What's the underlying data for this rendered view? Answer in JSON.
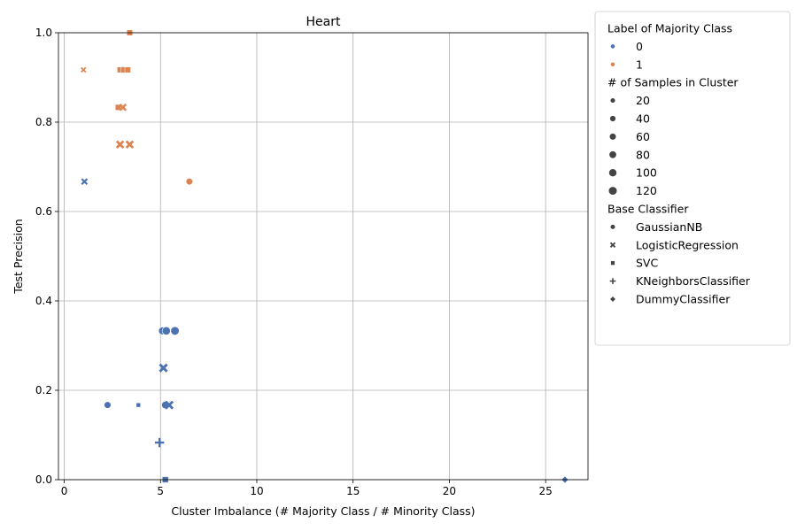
{
  "chart_data": {
    "type": "scatter",
    "title": "Heart",
    "xlabel": "Cluster Imbalance (# Majority Class / # Minority Class)",
    "ylabel": "Test Precision",
    "xlim": [
      -0.3,
      27.2
    ],
    "ylim": [
      0,
      1.0
    ],
    "xticks": [
      0,
      5,
      10,
      15,
      20,
      25
    ],
    "xtick_labels": [
      "0",
      "5",
      "10",
      "15",
      "20",
      "25"
    ],
    "yticks": [
      0,
      0.2,
      0.4,
      0.6,
      0.8,
      1.0
    ],
    "ytick_labels": [
      "0.0",
      "0.2",
      "0.4",
      "0.6",
      "0.8",
      "1.0"
    ],
    "grid": true,
    "legend_position": "outside-right",
    "colors": {
      "0": "#4c72b0",
      "1": "#dd8452",
      "legend_gray": "#444444"
    },
    "legend": {
      "hue_title": "Label of Majority Class",
      "hue_items": [
        {
          "label": "0",
          "key": "0"
        },
        {
          "label": "1",
          "key": "1"
        }
      ],
      "size_title": "# of Samples in Cluster",
      "size_items": [
        {
          "label": "20",
          "size": 20
        },
        {
          "label": "40",
          "size": 40
        },
        {
          "label": "60",
          "size": 60
        },
        {
          "label": "80",
          "size": 80
        },
        {
          "label": "100",
          "size": 100
        },
        {
          "label": "120",
          "size": 120
        }
      ],
      "style_title": "Base Classifier",
      "style_items": [
        {
          "label": "GaussianNB",
          "marker": "circle"
        },
        {
          "label": "LogisticRegression",
          "marker": "x"
        },
        {
          "label": "SVC",
          "marker": "square"
        },
        {
          "label": "KNeighborsClassifier",
          "marker": "plus"
        },
        {
          "label": "DummyClassifier",
          "marker": "diamond"
        }
      ]
    },
    "points": [
      {
        "x": 3.4,
        "y": 1.0,
        "label": "1",
        "marker": "square",
        "samples": 60
      },
      {
        "x": 1.0,
        "y": 0.917,
        "label": "1",
        "marker": "x",
        "samples": 20
      },
      {
        "x": 2.9,
        "y": 0.917,
        "label": "1",
        "marker": "square",
        "samples": 60
      },
      {
        "x": 3.1,
        "y": 0.917,
        "label": "1",
        "marker": "square",
        "samples": 70
      },
      {
        "x": 3.3,
        "y": 0.917,
        "label": "1",
        "marker": "square",
        "samples": 60
      },
      {
        "x": 2.8,
        "y": 0.833,
        "label": "1",
        "marker": "square",
        "samples": 60
      },
      {
        "x": 3.05,
        "y": 0.833,
        "label": "1",
        "marker": "x",
        "samples": 60
      },
      {
        "x": 2.9,
        "y": 0.75,
        "label": "1",
        "marker": "x",
        "samples": 80
      },
      {
        "x": 3.4,
        "y": 0.75,
        "label": "1",
        "marker": "x",
        "samples": 80
      },
      {
        "x": 6.5,
        "y": 0.667,
        "label": "1",
        "marker": "circle",
        "samples": 60
      },
      {
        "x": 1.05,
        "y": 0.667,
        "label": "0",
        "marker": "x",
        "samples": 40
      },
      {
        "x": 5.1,
        "y": 0.333,
        "label": "0",
        "marker": "circle",
        "samples": 90
      },
      {
        "x": 5.3,
        "y": 0.333,
        "label": "0",
        "marker": "circle",
        "samples": 110
      },
      {
        "x": 5.75,
        "y": 0.333,
        "label": "0",
        "marker": "circle",
        "samples": 120
      },
      {
        "x": 5.15,
        "y": 0.25,
        "label": "0",
        "marker": "x",
        "samples": 100
      },
      {
        "x": 2.25,
        "y": 0.167,
        "label": "0",
        "marker": "circle",
        "samples": 60
      },
      {
        "x": 3.85,
        "y": 0.167,
        "label": "0",
        "marker": "square",
        "samples": 20
      },
      {
        "x": 5.25,
        "y": 0.167,
        "label": "0",
        "marker": "circle",
        "samples": 80
      },
      {
        "x": 5.45,
        "y": 0.167,
        "label": "0",
        "marker": "x",
        "samples": 100
      },
      {
        "x": 4.95,
        "y": 0.083,
        "label": "0",
        "marker": "plus",
        "samples": 90
      },
      {
        "x": 5.25,
        "y": 0.0,
        "label": "0",
        "marker": "square",
        "samples": 70
      },
      {
        "x": 26.0,
        "y": 0.0,
        "label": "0",
        "marker": "diamond",
        "samples": 40
      }
    ]
  }
}
